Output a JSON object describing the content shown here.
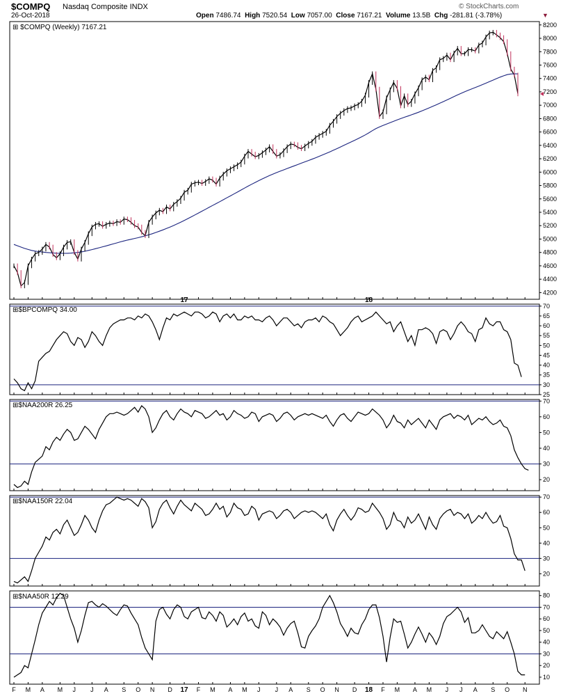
{
  "header": {
    "symbol": "$COMPQ",
    "name": "Nasdaq Composite INDX",
    "date": "26-Oct-2018",
    "brand": "© StockCharts.com",
    "open_label": "Open",
    "open": "7486.74",
    "high_label": "High",
    "high": "7520.54",
    "low_label": "Low",
    "low": "7057.00",
    "close_label": "Close",
    "close": "7167.21",
    "volume_label": "Volume",
    "volume": "13.5B",
    "chg_label": "Chg",
    "chg": "-281.81 (-3.78%)",
    "chg_icon": "down-triangle-icon"
  },
  "colors": {
    "price_line": "#000000",
    "down_bar": "#c0305a",
    "moving_average": "#1a237e",
    "reference_line": "#1a237e",
    "indicator_line": "#000000",
    "panel_border": "#000000"
  },
  "x_axis": {
    "month_labels": [
      {
        "label": "F",
        "week": 0
      },
      {
        "label": "M",
        "week": 4
      },
      {
        "label": "A",
        "week": 8
      },
      {
        "label": "M",
        "week": 13
      },
      {
        "label": "J",
        "week": 17
      },
      {
        "label": "J",
        "week": 22
      },
      {
        "label": "A",
        "week": 26
      },
      {
        "label": "S",
        "week": 31
      },
      {
        "label": "O",
        "week": 35
      },
      {
        "label": "N",
        "week": 39
      },
      {
        "label": "D",
        "week": 44
      },
      {
        "label": "17",
        "week": 48,
        "bold": true
      },
      {
        "label": "F",
        "week": 52
      },
      {
        "label": "M",
        "week": 56
      },
      {
        "label": "A",
        "week": 61
      },
      {
        "label": "M",
        "week": 65
      },
      {
        "label": "J",
        "week": 69
      },
      {
        "label": "J",
        "week": 74
      },
      {
        "label": "A",
        "week": 78
      },
      {
        "label": "S",
        "week": 83
      },
      {
        "label": "O",
        "week": 87
      },
      {
        "label": "N",
        "week": 91
      },
      {
        "label": "D",
        "week": 96
      },
      {
        "label": "18",
        "week": 100,
        "bold": true
      },
      {
        "label": "F",
        "week": 104
      },
      {
        "label": "M",
        "week": 108
      },
      {
        "label": "A",
        "week": 113
      },
      {
        "label": "M",
        "week": 117
      },
      {
        "label": "J",
        "week": 122
      },
      {
        "label": "J",
        "week": 126
      },
      {
        "label": "A",
        "week": 130
      },
      {
        "label": "S",
        "week": 135
      },
      {
        "label": "O",
        "week": 139
      },
      {
        "label": "N",
        "week": 144
      }
    ]
  },
  "chart_data": [
    {
      "type": "line",
      "panel": "price",
      "label": "$COMPQ (Weekly) 7167.21",
      "ylim": [
        4100,
        8250
      ],
      "yticks": [
        4200,
        4400,
        4600,
        4800,
        5000,
        5200,
        5400,
        5600,
        5800,
        6000,
        6200,
        6400,
        6600,
        6800,
        7000,
        7200,
        7400,
        7600,
        7800,
        8000,
        8200
      ],
      "series": [
        {
          "values": [
            4600,
            4500,
            4300,
            4350,
            4600,
            4700,
            4780,
            4800,
            4850,
            4920,
            4880,
            4770,
            4720,
            4780,
            4880,
            4950,
            4960,
            4800,
            4700,
            4850,
            4950,
            5080,
            5180,
            5220,
            5230,
            5190,
            5220,
            5240,
            5230,
            5260,
            5250,
            5300,
            5290,
            5250,
            5200,
            5180,
            5100,
            5050,
            5250,
            5330,
            5390,
            5430,
            5410,
            5480,
            5450,
            5520,
            5560,
            5610,
            5700,
            5730,
            5820,
            5840,
            5850,
            5830,
            5860,
            5900,
            5880,
            5820,
            5910,
            5970,
            6020,
            6050,
            6080,
            6110,
            6150,
            6240,
            6310,
            6270,
            6230,
            6250,
            6290,
            6330,
            6380,
            6310,
            6240,
            6260,
            6320,
            6380,
            6420,
            6410,
            6370,
            6350,
            6390,
            6430,
            6460,
            6520,
            6550,
            6580,
            6610,
            6700,
            6760,
            6830,
            6880,
            6920,
            6950,
            6960,
            6990,
            7010,
            7060,
            7150,
            7340,
            7470,
            7240,
            6830,
            6900,
            7110,
            7230,
            7340,
            7250,
            6990,
            7140,
            7010,
            7060,
            7170,
            7260,
            7380,
            7420,
            7380,
            7520,
            7560,
            7680,
            7700,
            7750,
            7680,
            7780,
            7850,
            7770,
            7770,
            7830,
            7830,
            7810,
            7900,
            7930,
            8020,
            8080,
            8090,
            8050,
            8010,
            7950,
            7770,
            7540,
            7450,
            7170
          ]
        },
        {
          "name": "Moving Average",
          "values": [
            4920,
            4900,
            4880,
            4860,
            4845,
            4830,
            4820,
            4812,
            4806,
            4800,
            4796,
            4792,
            4789,
            4787,
            4786,
            4787,
            4790,
            4795,
            4800,
            4808,
            4818,
            4830,
            4843,
            4856,
            4870,
            4884,
            4898,
            4913,
            4928,
            4943,
            4958,
            4972,
            4985,
            4997,
            5009,
            5021,
            5034,
            5048,
            5063,
            5080,
            5098,
            5117,
            5137,
            5158,
            5180,
            5203,
            5227,
            5252,
            5278,
            5305,
            5333,
            5361,
            5389,
            5417,
            5445,
            5474,
            5502,
            5530,
            5558,
            5587,
            5616,
            5645,
            5674,
            5703,
            5733,
            5762,
            5791,
            5819,
            5846,
            5873,
            5899,
            5924,
            5948,
            5971,
            5993,
            6014,
            6034,
            6054,
            6074,
            6094,
            6114,
            6134,
            6154,
            6174,
            6194,
            6215,
            6236,
            6258,
            6280,
            6303,
            6327,
            6351,
            6376,
            6401,
            6426,
            6451,
            6476,
            6502,
            6529,
            6557,
            6587,
            6620,
            6650,
            6675,
            6697,
            6718,
            6739,
            6760,
            6780,
            6800,
            6820,
            6838,
            6856,
            6875,
            6895,
            6916,
            6938,
            6960,
            6983,
            7006,
            7030,
            7054,
            7079,
            7104,
            7129,
            7154,
            7178,
            7201,
            7223,
            7244,
            7265,
            7286,
            7308,
            7330,
            7352,
            7375,
            7398,
            7420,
            7440,
            7457,
            7467,
            7470,
            7468
          ]
        }
      ]
    },
    {
      "type": "line",
      "panel": "bpcompq",
      "label": "$BPCOMPQ 34.00",
      "ylim": [
        25,
        71
      ],
      "yticks": [
        25,
        30,
        35,
        40,
        45,
        50,
        55,
        60,
        65,
        70
      ],
      "reference_lines": [
        70,
        30
      ],
      "series": [
        {
          "values": [
            33,
            31,
            28,
            27,
            31,
            28,
            32,
            42,
            44,
            46,
            47,
            50,
            53,
            55,
            57,
            56,
            52,
            50,
            54,
            53,
            49,
            52,
            57,
            55,
            52,
            50,
            55,
            59,
            61,
            62,
            63,
            63,
            64,
            64,
            63,
            65,
            64,
            66,
            65,
            62,
            58,
            53,
            59,
            64,
            63,
            66,
            65,
            66,
            67,
            66,
            65,
            67,
            67,
            66,
            64,
            65,
            67,
            66,
            62,
            65,
            66,
            64,
            66,
            63,
            63,
            65,
            64,
            65,
            63,
            63,
            62,
            64,
            65,
            63,
            60,
            62,
            64,
            64,
            62,
            60,
            61,
            59,
            62,
            63,
            63,
            64,
            62,
            65,
            64,
            62,
            61,
            58,
            55,
            57,
            59,
            62,
            64,
            65,
            62,
            63,
            64,
            65,
            67,
            65,
            63,
            61,
            62,
            57,
            60,
            62,
            57,
            52,
            55,
            50,
            58,
            58,
            59,
            58,
            56,
            51,
            57,
            58,
            57,
            53,
            56,
            60,
            62,
            60,
            57,
            56,
            52,
            58,
            59,
            64,
            61,
            60,
            62,
            62,
            58,
            57,
            53,
            41,
            40,
            34
          ]
        }
      ]
    },
    {
      "type": "line",
      "panel": "naa200r",
      "label": "$NAA200R 26.25",
      "ylim": [
        13,
        71
      ],
      "yticks": [
        20,
        30,
        40,
        50,
        60,
        70
      ],
      "reference_lines": [
        70,
        30
      ],
      "series": [
        {
          "values": [
            17,
            15,
            16,
            19,
            17,
            25,
            31,
            33,
            35,
            41,
            39,
            44,
            47,
            45,
            49,
            52,
            50,
            45,
            46,
            50,
            54,
            52,
            49,
            46,
            52,
            56,
            60,
            62,
            62,
            63,
            62,
            61,
            62,
            64,
            66,
            63,
            67,
            65,
            60,
            50,
            53,
            58,
            62,
            64,
            60,
            58,
            62,
            65,
            63,
            62,
            60,
            64,
            63,
            62,
            59,
            60,
            62,
            64,
            61,
            62,
            58,
            60,
            64,
            62,
            61,
            59,
            60,
            63,
            62,
            57,
            60,
            61,
            62,
            61,
            57,
            59,
            62,
            63,
            61,
            58,
            60,
            61,
            62,
            61,
            62,
            61,
            60,
            59,
            61,
            57,
            54,
            58,
            61,
            62,
            59,
            57,
            60,
            63,
            62,
            61,
            62,
            65,
            63,
            61,
            58,
            53,
            56,
            61,
            57,
            56,
            53,
            58,
            55,
            57,
            59,
            56,
            53,
            58,
            55,
            52,
            58,
            60,
            61,
            62,
            59,
            61,
            60,
            58,
            61,
            55,
            57,
            59,
            58,
            60,
            57,
            55,
            56,
            58,
            54,
            53,
            48,
            39,
            34,
            30,
            27,
            26
          ]
        }
      ]
    },
    {
      "type": "line",
      "panel": "naa150r",
      "label": "$NAA150R 22.04",
      "ylim": [
        12,
        71
      ],
      "yticks": [
        20,
        30,
        40,
        50,
        60,
        70
      ],
      "reference_lines": [
        70,
        30
      ],
      "series": [
        {
          "values": [
            15,
            14,
            16,
            18,
            15,
            22,
            30,
            34,
            38,
            44,
            42,
            47,
            49,
            46,
            52,
            55,
            50,
            45,
            47,
            52,
            58,
            55,
            50,
            47,
            55,
            61,
            65,
            66,
            68,
            70,
            69,
            68,
            69,
            68,
            66,
            64,
            69,
            67,
            63,
            50,
            54,
            62,
            66,
            68,
            63,
            59,
            64,
            68,
            65,
            63,
            61,
            66,
            64,
            62,
            58,
            59,
            62,
            66,
            62,
            64,
            57,
            60,
            66,
            63,
            62,
            58,
            59,
            64,
            62,
            55,
            59,
            60,
            61,
            60,
            56,
            58,
            61,
            62,
            60,
            56,
            58,
            60,
            61,
            60,
            61,
            60,
            58,
            56,
            59,
            52,
            48,
            55,
            59,
            62,
            58,
            55,
            58,
            63,
            62,
            60,
            61,
            66,
            63,
            60,
            56,
            49,
            52,
            60,
            55,
            54,
            50,
            57,
            53,
            55,
            59,
            54,
            49,
            57,
            52,
            49,
            56,
            59,
            61,
            62,
            58,
            60,
            59,
            56,
            59,
            53,
            55,
            58,
            56,
            60,
            56,
            53,
            54,
            58,
            51,
            50,
            43,
            33,
            29,
            29,
            22
          ]
        }
      ]
    },
    {
      "type": "line",
      "panel": "naa50r",
      "label": "$NAA50R 12.29",
      "ylim": [
        4,
        84
      ],
      "yticks": [
        10,
        20,
        30,
        40,
        50,
        60,
        70,
        80
      ],
      "reference_lines": [
        70,
        30
      ],
      "series": [
        {
          "values": [
            10,
            12,
            14,
            20,
            18,
            30,
            42,
            55,
            65,
            70,
            75,
            72,
            78,
            82,
            80,
            70,
            60,
            52,
            40,
            50,
            63,
            74,
            75,
            72,
            70,
            73,
            71,
            68,
            65,
            63,
            68,
            72,
            71,
            65,
            60,
            55,
            44,
            35,
            30,
            25,
            58,
            68,
            70,
            64,
            60,
            68,
            72,
            70,
            62,
            60,
            66,
            68,
            70,
            61,
            60,
            66,
            63,
            58,
            66,
            63,
            53,
            56,
            60,
            55,
            62,
            65,
            58,
            60,
            54,
            52,
            66,
            63,
            55,
            60,
            57,
            53,
            46,
            52,
            56,
            58,
            48,
            36,
            35,
            45,
            50,
            54,
            60,
            70,
            75,
            80,
            74,
            66,
            56,
            51,
            45,
            52,
            48,
            47,
            55,
            60,
            68,
            72,
            72,
            61,
            45,
            23,
            44,
            60,
            57,
            58,
            47,
            35,
            40,
            47,
            53,
            47,
            40,
            48,
            44,
            38,
            45,
            56,
            62,
            64,
            67,
            70,
            66,
            57,
            61,
            48,
            48,
            50,
            55,
            50,
            45,
            43,
            49,
            46,
            43,
            49,
            40,
            30,
            15,
            12,
            12
          ]
        }
      ]
    }
  ]
}
